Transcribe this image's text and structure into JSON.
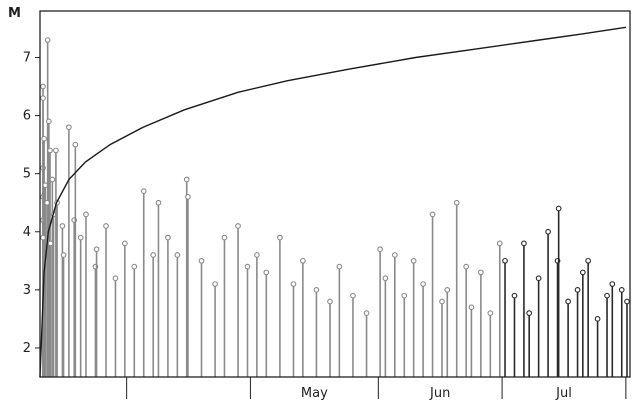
{
  "chart_data": {
    "type": "scatter",
    "title": "",
    "ylabel": "M",
    "xlabel": "",
    "ylim": [
      1.5,
      7.8
    ],
    "xlim": [
      "2011-03-11",
      "2011-07-31"
    ],
    "yticks": [
      2,
      3,
      4,
      5,
      6,
      7
    ],
    "xticks": [
      {
        "date": "2011-04-01",
        "label": ""
      },
      {
        "date": "2011-05-01",
        "label": "May"
      },
      {
        "date": "2011-06-01",
        "label": "Jun"
      },
      {
        "date": "2011-07-01",
        "label": "Jul"
      },
      {
        "date": "2011-07-31",
        "label": ""
      }
    ],
    "colors": {
      "stems_before_july": "#8a8a8a",
      "stems_july": "#2a2a2a",
      "cumulative_line": "#1a1a1a",
      "frame": "#222222"
    },
    "series": [
      {
        "type": "stem",
        "points": [
          [
            "2011-03-11",
            4.6
          ],
          [
            "2011-03-11",
            6.5
          ],
          [
            "2011-03-11",
            5.1
          ],
          [
            "2011-03-11",
            4.2
          ],
          [
            "2011-03-12",
            6.3
          ],
          [
            "2011-03-12",
            5.6
          ],
          [
            "2011-03-12",
            4.8
          ],
          [
            "2011-03-12",
            3.9
          ],
          [
            "2011-03-13",
            7.3
          ],
          [
            "2011-03-13",
            5.9
          ],
          [
            "2011-03-13",
            5.4
          ],
          [
            "2011-03-13",
            4.5
          ],
          [
            "2011-03-14",
            4.9
          ],
          [
            "2011-03-14",
            4.3
          ],
          [
            "2011-03-14",
            3.8
          ],
          [
            "2011-03-15",
            5.4
          ],
          [
            "2011-03-15",
            4.5
          ],
          [
            "2011-03-16",
            4.1
          ],
          [
            "2011-03-17",
            3.6
          ],
          [
            "2011-03-18",
            5.8
          ],
          [
            "2011-03-19",
            4.2
          ],
          [
            "2011-03-20",
            5.5
          ],
          [
            "2011-03-21",
            3.9
          ],
          [
            "2011-03-22",
            4.3
          ],
          [
            "2011-03-24",
            3.4
          ],
          [
            "2011-03-25",
            3.7
          ],
          [
            "2011-03-27",
            4.1
          ],
          [
            "2011-03-29",
            3.2
          ],
          [
            "2011-04-01",
            3.8
          ],
          [
            "2011-04-03",
            3.4
          ],
          [
            "2011-04-05",
            4.7
          ],
          [
            "2011-04-07",
            3.6
          ],
          [
            "2011-04-09",
            4.5
          ],
          [
            "2011-04-11",
            3.9
          ],
          [
            "2011-04-13",
            3.6
          ],
          [
            "2011-04-16",
            4.9
          ],
          [
            "2011-04-16",
            4.6
          ],
          [
            "2011-04-19",
            3.5
          ],
          [
            "2011-04-22",
            3.1
          ],
          [
            "2011-04-25",
            3.9
          ],
          [
            "2011-04-28",
            4.1
          ],
          [
            "2011-04-30",
            3.4
          ],
          [
            "2011-05-03",
            3.6
          ],
          [
            "2011-05-05",
            3.3
          ],
          [
            "2011-05-08",
            3.9
          ],
          [
            "2011-05-11",
            3.1
          ],
          [
            "2011-05-14",
            3.5
          ],
          [
            "2011-05-17",
            3.0
          ],
          [
            "2011-05-20",
            2.8
          ],
          [
            "2011-05-23",
            3.4
          ],
          [
            "2011-05-26",
            2.9
          ],
          [
            "2011-05-29",
            2.6
          ],
          [
            "2011-06-01",
            3.7
          ],
          [
            "2011-06-03",
            3.2
          ],
          [
            "2011-06-05",
            3.6
          ],
          [
            "2011-06-07",
            2.9
          ],
          [
            "2011-06-10",
            3.5
          ],
          [
            "2011-06-12",
            3.1
          ],
          [
            "2011-06-14",
            4.3
          ],
          [
            "2011-06-16",
            2.8
          ],
          [
            "2011-06-18",
            3.0
          ],
          [
            "2011-06-20",
            4.5
          ],
          [
            "2011-06-22",
            3.4
          ],
          [
            "2011-06-24",
            2.7
          ],
          [
            "2011-06-26",
            3.3
          ],
          [
            "2011-06-28",
            2.6
          ],
          [
            "2011-06-30",
            3.8
          ],
          [
            "2011-07-02",
            3.5
          ],
          [
            "2011-07-04",
            2.9
          ],
          [
            "2011-07-06",
            3.8
          ],
          [
            "2011-07-08",
            2.6
          ],
          [
            "2011-07-10",
            3.2
          ],
          [
            "2011-07-12",
            4.0
          ],
          [
            "2011-07-14",
            3.5
          ],
          [
            "2011-07-15",
            4.4
          ],
          [
            "2011-07-17",
            2.8
          ],
          [
            "2011-07-19",
            3.0
          ],
          [
            "2011-07-21",
            3.3
          ],
          [
            "2011-07-22",
            3.5
          ],
          [
            "2011-07-24",
            2.5
          ],
          [
            "2011-07-26",
            2.9
          ],
          [
            "2011-07-28",
            3.1
          ],
          [
            "2011-07-30",
            3.0
          ],
          [
            "2011-07-31",
            2.8
          ]
        ]
      },
      {
        "type": "line",
        "points": [
          [
            "2011-03-11",
            1.5
          ],
          [
            "2011-03-12",
            3.3
          ],
          [
            "2011-03-13",
            4.0
          ],
          [
            "2011-03-15",
            4.5
          ],
          [
            "2011-03-18",
            4.9
          ],
          [
            "2011-03-22",
            5.2
          ],
          [
            "2011-03-28",
            5.5
          ],
          [
            "2011-04-05",
            5.8
          ],
          [
            "2011-04-15",
            6.1
          ],
          [
            "2011-04-28",
            6.4
          ],
          [
            "2011-05-10",
            6.6
          ],
          [
            "2011-05-25",
            6.8
          ],
          [
            "2011-06-10",
            7.0
          ],
          [
            "2011-06-25",
            7.15
          ],
          [
            "2011-07-10",
            7.3
          ],
          [
            "2011-07-20",
            7.4
          ],
          [
            "2011-07-31",
            7.52
          ]
        ]
      }
    ]
  }
}
